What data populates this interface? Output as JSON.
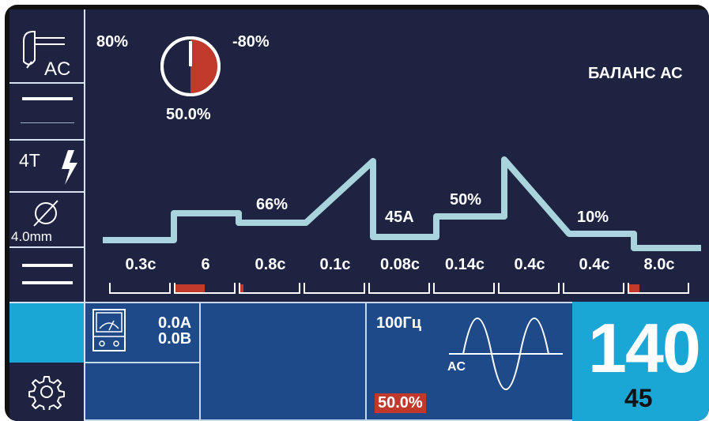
{
  "sidebar": {
    "mode_label": "AC",
    "trigger_label": "4T",
    "diameter_label": "4.0mm"
  },
  "balance": {
    "left_label": "80%",
    "right_label": "-80%",
    "value_label": "50.0%",
    "value_fraction": 0.5,
    "title": "БАЛАНС АС"
  },
  "waveform": {
    "labels": [
      "66%",
      "45A",
      "50%",
      "10%"
    ]
  },
  "params": [
    {
      "label": "0.3с",
      "fill": 0.0
    },
    {
      "label": "6",
      "fill": 0.5
    },
    {
      "label": "0.8с",
      "fill": 0.05
    },
    {
      "label": "0.1с",
      "fill": 0.0
    },
    {
      "label": "0.08с",
      "fill": 0.0
    },
    {
      "label": "0.14с",
      "fill": 0.0
    },
    {
      "label": "0.4с",
      "fill": 0.0
    },
    {
      "label": "0.4с",
      "fill": 0.0
    },
    {
      "label": "8.0с",
      "fill": 0.17
    }
  ],
  "meter": {
    "current": "0.0A",
    "voltage": "0.0B"
  },
  "frequency": {
    "label": "100Гц",
    "wave_label": "AC",
    "balance_badge": "50.0%"
  },
  "main_current": {
    "value": "140",
    "sub_value": "45"
  },
  "colors": {
    "background": "#1d2340",
    "panel_blue": "#1f4a8a",
    "accent_cyan": "#1aa7d6",
    "highlight_red": "#c0392b",
    "line": "#a9d4dd"
  }
}
